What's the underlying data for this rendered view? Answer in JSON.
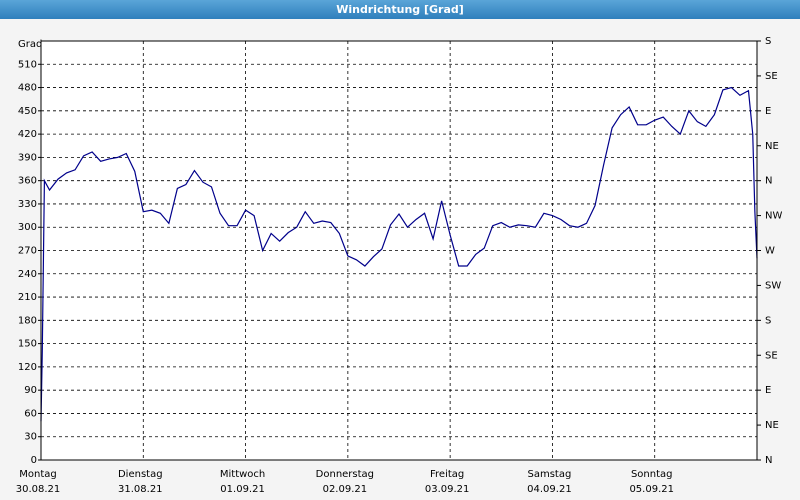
{
  "chart_data": {
    "type": "line",
    "title": "Windrichtung [Grad]",
    "y_label": "Grad",
    "color": "#00008b",
    "grid": true,
    "xlim": [
      0,
      168
    ],
    "xticks": [
      {
        "value": 0,
        "label": "Montag",
        "date": "30.08.21"
      },
      {
        "value": 24,
        "label": "Dienstag",
        "date": "31.08.21"
      },
      {
        "value": 48,
        "label": "Mittwoch",
        "date": "01.09.21"
      },
      {
        "value": 72,
        "label": "Donnerstag",
        "date": "02.09.21"
      },
      {
        "value": 96,
        "label": "Freitag",
        "date": "03.09.21"
      },
      {
        "value": 120,
        "label": "Samstag",
        "date": "04.09.21"
      },
      {
        "value": 144,
        "label": "Sonntag",
        "date": "05.09.21"
      }
    ],
    "ylim": [
      0,
      540
    ],
    "yticks": [
      0,
      30,
      60,
      90,
      120,
      150,
      180,
      210,
      240,
      270,
      300,
      330,
      360,
      390,
      420,
      450,
      480,
      510
    ],
    "y2lim": [
      0,
      540
    ],
    "y2ticks": [
      {
        "value": 0,
        "label": "N"
      },
      {
        "value": 45,
        "label": "NE"
      },
      {
        "value": 90,
        "label": "E"
      },
      {
        "value": 135,
        "label": "SE"
      },
      {
        "value": 180,
        "label": "S"
      },
      {
        "value": 225,
        "label": "SW"
      },
      {
        "value": 270,
        "label": "W"
      },
      {
        "value": 315,
        "label": "NW"
      },
      {
        "value": 360,
        "label": "N"
      },
      {
        "value": 405,
        "label": "NE"
      },
      {
        "value": 450,
        "label": "E"
      },
      {
        "value": 495,
        "label": "SE"
      },
      {
        "value": 540,
        "label": "S"
      }
    ],
    "x": [
      0,
      0.3,
      0.8,
      2,
      4,
      6,
      8,
      10,
      12,
      14,
      16,
      18,
      20,
      22,
      24,
      26,
      28,
      30,
      32,
      34,
      36,
      38,
      40,
      42,
      44,
      46,
      48,
      50,
      52,
      54,
      56,
      58,
      60,
      62,
      64,
      66,
      68,
      70,
      72,
      74,
      76,
      78,
      80,
      82,
      84,
      86,
      88,
      90,
      92,
      94,
      96,
      98,
      100,
      102,
      104,
      106,
      108,
      110,
      112,
      114,
      116,
      118,
      120,
      122,
      124,
      126,
      128,
      130,
      132,
      134,
      136,
      138,
      140,
      142,
      144,
      146,
      148,
      150,
      152,
      154,
      156,
      158,
      160,
      162,
      164,
      166,
      167,
      167.5,
      168
    ],
    "values": [
      50,
      140,
      360,
      348,
      362,
      370,
      374,
      392,
      397,
      385,
      388,
      390,
      395,
      372,
      320,
      322,
      318,
      305,
      350,
      355,
      373,
      358,
      352,
      318,
      302,
      302,
      322,
      315,
      270,
      292,
      282,
      293,
      300,
      320,
      305,
      308,
      306,
      292,
      263,
      258,
      250,
      262,
      272,
      303,
      317,
      300,
      310,
      318,
      285,
      334,
      290,
      250,
      250,
      265,
      273,
      302,
      306,
      300,
      303,
      302,
      300,
      318,
      315,
      310,
      302,
      300,
      305,
      328,
      380,
      428,
      445,
      455,
      432,
      432,
      438,
      442,
      430,
      420,
      450,
      436,
      430,
      445,
      477,
      480,
      470,
      476,
      420,
      320,
      260
    ]
  }
}
